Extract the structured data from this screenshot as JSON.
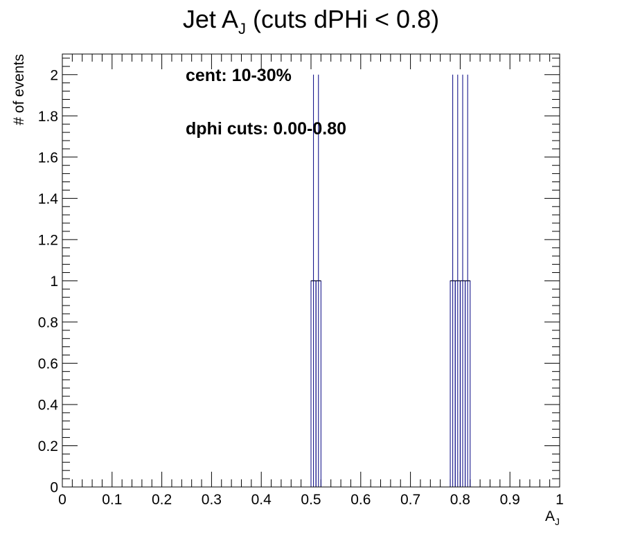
{
  "chart_data": {
    "type": "bar",
    "title_main": "Jet A",
    "title_sub": "J",
    "title_rest": " (cuts dPHi < 0.8)",
    "xlabel_main": "A",
    "xlabel_sub": "J",
    "ylabel": "# of events",
    "xlim": [
      0,
      1
    ],
    "ylim": [
      0,
      2.1
    ],
    "x_ticks": [
      "0",
      "0.1",
      "0.2",
      "0.3",
      "0.4",
      "0.5",
      "0.6",
      "0.7",
      "0.8",
      "0.9",
      "1"
    ],
    "y_ticks": [
      "0",
      "0.2",
      "0.4",
      "0.6",
      "0.8",
      "1",
      "1.2",
      "1.4",
      "1.6",
      "1.8",
      "2"
    ],
    "annotations": [
      "cent: 10-30%",
      "dphi cuts: 0.00-0.80"
    ],
    "bin_width": 0.01,
    "bins": [
      {
        "x": 0.505,
        "count": 1,
        "err": 1
      },
      {
        "x": 0.515,
        "count": 1,
        "err": 1
      },
      {
        "x": 0.785,
        "count": 1,
        "err": 1
      },
      {
        "x": 0.795,
        "count": 1,
        "err": 1
      },
      {
        "x": 0.805,
        "count": 1,
        "err": 1
      },
      {
        "x": 0.815,
        "count": 1,
        "err": 1
      }
    ],
    "grid": false,
    "line_color": "#000080",
    "frame_color": "#000000"
  }
}
